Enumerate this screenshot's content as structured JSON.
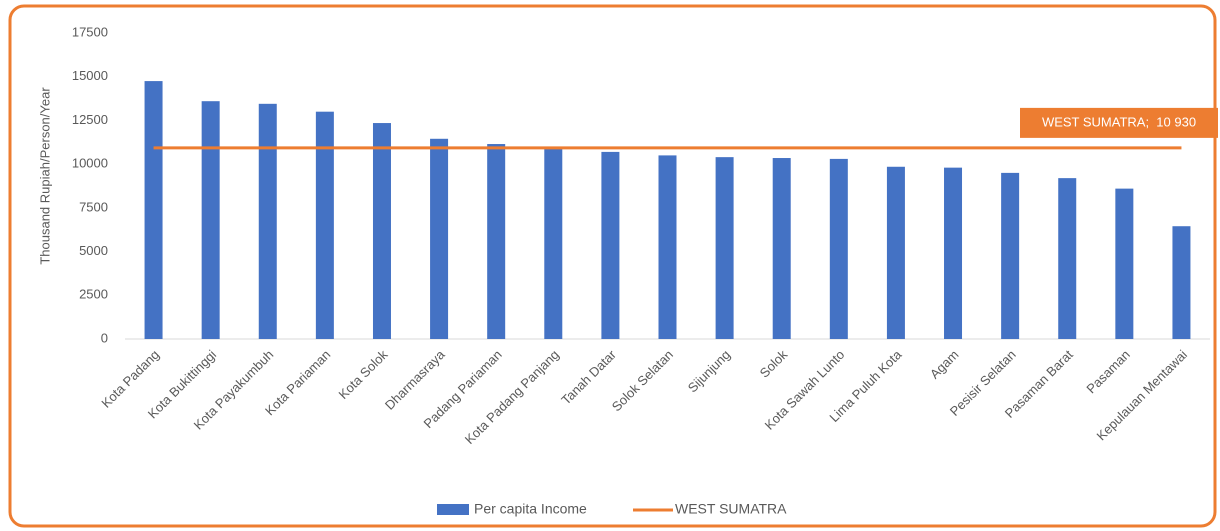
{
  "chart_data": {
    "type": "bar",
    "y_label": "Thousand Rupiah/Person/Year",
    "categories": [
      "Kota Padang",
      "Kota Bukittinggi",
      "Kota Payakumbuh",
      "Kota Pariaman",
      "Kota Solok",
      "Dharmasraya",
      "Padang Pariaman",
      "Kota Padang Panjang",
      "Tanah Datar",
      "Solok Selatan",
      "Sijunjung",
      "Solok",
      "Kota Sawah Lunto",
      "Lima Puluh Kota",
      "Agam",
      "Pesisir Selatan",
      "Pasaman Barat",
      "Pasaman",
      "Kepulauan Mentawai"
    ],
    "series": [
      {
        "name": "Per capita Income",
        "color": "#4472c4",
        "type": "bar",
        "values": [
          14750,
          13600,
          13450,
          13000,
          12350,
          11450,
          11150,
          10900,
          10700,
          10500,
          10400,
          10350,
          10300,
          9850,
          9800,
          9500,
          9200,
          8600,
          6450
        ]
      },
      {
        "name": "WEST SUMATRA",
        "color": "#ed7d31",
        "type": "line",
        "values": [
          10930,
          10930,
          10930,
          10930,
          10930,
          10930,
          10930,
          10930,
          10930,
          10930,
          10930,
          10930,
          10930,
          10930,
          10930,
          10930,
          10930,
          10930,
          10930
        ]
      }
    ],
    "annotation": "WEST SUMATRA;  10 930",
    "ylim": [
      0,
      17500
    ],
    "yticks": [
      0,
      2500,
      5000,
      7500,
      10000,
      12500,
      15000,
      17500
    ],
    "grid": false,
    "legend": "bottom"
  }
}
